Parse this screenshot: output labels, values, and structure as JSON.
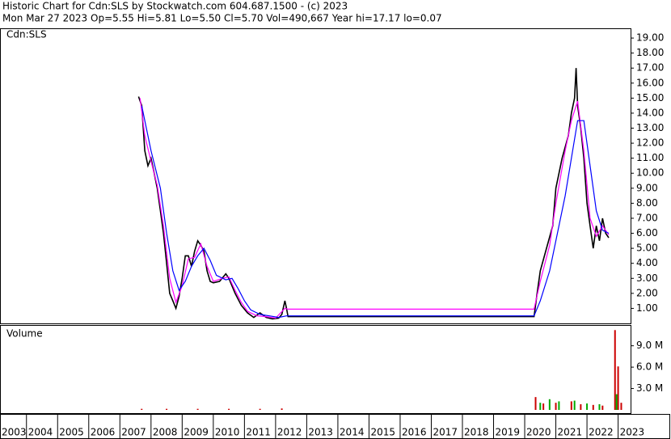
{
  "header": {
    "title": "Historic Chart for Cdn:SLS by Stockwatch.com 604.687.1500 - (c) 2023",
    "quote": "Mon Mar 27 2023   Op=5.55   Hi=5.81   Lo=5.50   Cl=5.70   Vol=490,667   Year hi=17.17   lo=0.07"
  },
  "chart_data": [
    {
      "type": "line",
      "label": "Cdn:SLS",
      "xlim": [
        2003.15,
        2023.4
      ],
      "ylim": [
        0,
        19.65
      ],
      "yticks": [
        {
          "value": 1,
          "label": "1.00"
        },
        {
          "value": 2,
          "label": "2.00"
        },
        {
          "value": 3,
          "label": "3.00"
        },
        {
          "value": 4,
          "label": "4.00"
        },
        {
          "value": 5,
          "label": "5.00"
        },
        {
          "value": 6,
          "label": "6.00"
        },
        {
          "value": 7,
          "label": "7.00"
        },
        {
          "value": 8,
          "label": "8.00"
        },
        {
          "value": 9,
          "label": "9.00"
        },
        {
          "value": 10,
          "label": "10.00"
        },
        {
          "value": 11,
          "label": "11.00"
        },
        {
          "value": 12,
          "label": "12.00"
        },
        {
          "value": 13,
          "label": "13.00"
        },
        {
          "value": 14,
          "label": "14.00"
        },
        {
          "value": 15,
          "label": "15.00"
        },
        {
          "value": 16,
          "label": "16.00"
        },
        {
          "value": 17,
          "label": "17.00"
        },
        {
          "value": 18,
          "label": "18.00"
        },
        {
          "value": 19,
          "label": "19.00"
        }
      ],
      "series": [
        {
          "color": "#000000",
          "width": 1.6,
          "x": [
            2007.6,
            2007.7,
            2007.8,
            2007.9,
            2008.0,
            2008.1,
            2008.2,
            2008.3,
            2008.4,
            2008.5,
            2008.6,
            2008.7,
            2008.8,
            2008.9,
            2009.0,
            2009.1,
            2009.2,
            2009.3,
            2009.4,
            2009.5,
            2009.6,
            2009.7,
            2009.8,
            2009.9,
            2010.0,
            2010.2,
            2010.4,
            2010.5,
            2010.7,
            2010.9,
            2011.1,
            2011.3,
            2011.5,
            2011.7,
            2011.9,
            2012.1,
            2012.2,
            2012.3,
            2012.35,
            2012.4,
            2020.3,
            2020.4,
            2020.5,
            2020.7,
            2020.9,
            2021.0,
            2021.2,
            2021.4,
            2021.5,
            2021.6,
            2021.65,
            2021.7,
            2021.8,
            2021.9,
            2022.0,
            2022.1,
            2022.2,
            2022.3,
            2022.4,
            2022.5,
            2022.6,
            2022.7
          ],
          "values": [
            15.1,
            14.5,
            11.5,
            10.5,
            11,
            10,
            9,
            7.5,
            6,
            4,
            2,
            1.5,
            1.0,
            1.8,
            3,
            4.5,
            4.5,
            3.8,
            4.8,
            5.5,
            5.2,
            4.8,
            3.5,
            2.8,
            2.7,
            2.8,
            3.3,
            3.0,
            2.0,
            1.2,
            0.7,
            0.4,
            0.7,
            0.4,
            0.3,
            0.35,
            0.6,
            1.5,
            1.0,
            0.45,
            0.45,
            2,
            3.5,
            5,
            6.5,
            9,
            11,
            12.5,
            14,
            15,
            17,
            14.5,
            13,
            11,
            8,
            6.5,
            5,
            6.5,
            5.5,
            7,
            6,
            5.7
          ]
        },
        {
          "color": "#ff00ff",
          "width": 1.2,
          "x": [
            2007.65,
            2007.8,
            2008.0,
            2008.2,
            2008.4,
            2008.6,
            2008.8,
            2009.0,
            2009.2,
            2009.4,
            2009.6,
            2009.8,
            2010.0,
            2010.3,
            2010.5,
            2010.7,
            2010.9,
            2011.1,
            2011.4,
            2011.7,
            2012.0,
            2012.3,
            2012.4,
            2020.3,
            2020.5,
            2020.8,
            2021.0,
            2021.3,
            2021.5,
            2021.7,
            2021.9,
            2022.1,
            2022.3,
            2022.5,
            2022.7
          ],
          "values": [
            15.0,
            12.5,
            10.8,
            9.2,
            6.5,
            3.0,
            1.4,
            2.5,
            4.3,
            4.4,
            5.3,
            3.8,
            2.8,
            3.0,
            3.1,
            2.2,
            1.4,
            0.8,
            0.5,
            0.45,
            0.35,
            1.0,
            0.95,
            0.95,
            2.8,
            5.2,
            8.0,
            11.5,
            13.5,
            14.8,
            11.5,
            7.0,
            5.8,
            6.5,
            5.9
          ]
        },
        {
          "color": "#0000ff",
          "width": 1.2,
          "x": [
            2007.7,
            2008.0,
            2008.3,
            2008.5,
            2008.7,
            2008.9,
            2009.1,
            2009.3,
            2009.5,
            2009.7,
            2009.9,
            2010.1,
            2010.4,
            2010.6,
            2010.8,
            2011.0,
            2011.2,
            2011.5,
            2011.8,
            2012.1,
            2012.35,
            2020.3,
            2020.5,
            2020.8,
            2021.0,
            2021.3,
            2021.5,
            2021.7,
            2021.9,
            2022.1,
            2022.3,
            2022.5,
            2022.7
          ],
          "values": [
            14.5,
            11.5,
            9,
            6,
            3.5,
            2.2,
            2.8,
            3.8,
            4.5,
            5.0,
            4.2,
            3.2,
            2.9,
            3.0,
            2.3,
            1.5,
            0.9,
            0.6,
            0.5,
            0.4,
            0.5,
            0.5,
            1.5,
            3.5,
            5.5,
            8.5,
            11,
            13.5,
            13.5,
            10.5,
            7.5,
            6.2,
            6.0
          ]
        }
      ]
    },
    {
      "type": "bar",
      "label": "Volume",
      "xlim": [
        2003.15,
        2023.4
      ],
      "ylim": [
        0,
        11.8
      ],
      "yticks": [
        {
          "value": 3,
          "label": "3.0 M"
        },
        {
          "value": 6,
          "label": "6.0 M"
        },
        {
          "value": 9,
          "label": "9.0 M"
        }
      ],
      "xticks": [
        2004,
        2005,
        2006,
        2007,
        2008,
        2009,
        2010,
        2011,
        2012,
        2013,
        2014,
        2015,
        2016,
        2017,
        2018,
        2019,
        2020,
        2021,
        2022,
        2023
      ],
      "xlabels": [
        "2003",
        "2004",
        "2005",
        "2006",
        "2007",
        "2008",
        "2009",
        "2010",
        "2011",
        "2012",
        "2013",
        "2014",
        "2015",
        "2016",
        "2017",
        "2018",
        "2019",
        "2020",
        "2021",
        "2022",
        "2023"
      ],
      "series": [
        {
          "color": "#cc0000",
          "x": [
            2007.7,
            2008.5,
            2009.5,
            2010.5,
            2011.5,
            2012.2,
            2020.35,
            2020.6,
            2021.0,
            2021.5,
            2021.8,
            2022.2,
            2022.5,
            2022.9,
            2023.0,
            2023.1
          ],
          "values": [
            0.15,
            0.15,
            0.15,
            0.15,
            0.15,
            0.2,
            1.8,
            0.9,
            1.0,
            1.2,
            0.8,
            0.7,
            0.6,
            11.2,
            6.1,
            1.0
          ]
        },
        {
          "color": "#00aa00",
          "x": [
            2020.5,
            2020.8,
            2021.1,
            2021.6,
            2022.0,
            2022.4,
            2022.95
          ],
          "values": [
            1.0,
            1.5,
            1.2,
            1.3,
            0.9,
            0.8,
            2.2
          ]
        }
      ]
    }
  ]
}
